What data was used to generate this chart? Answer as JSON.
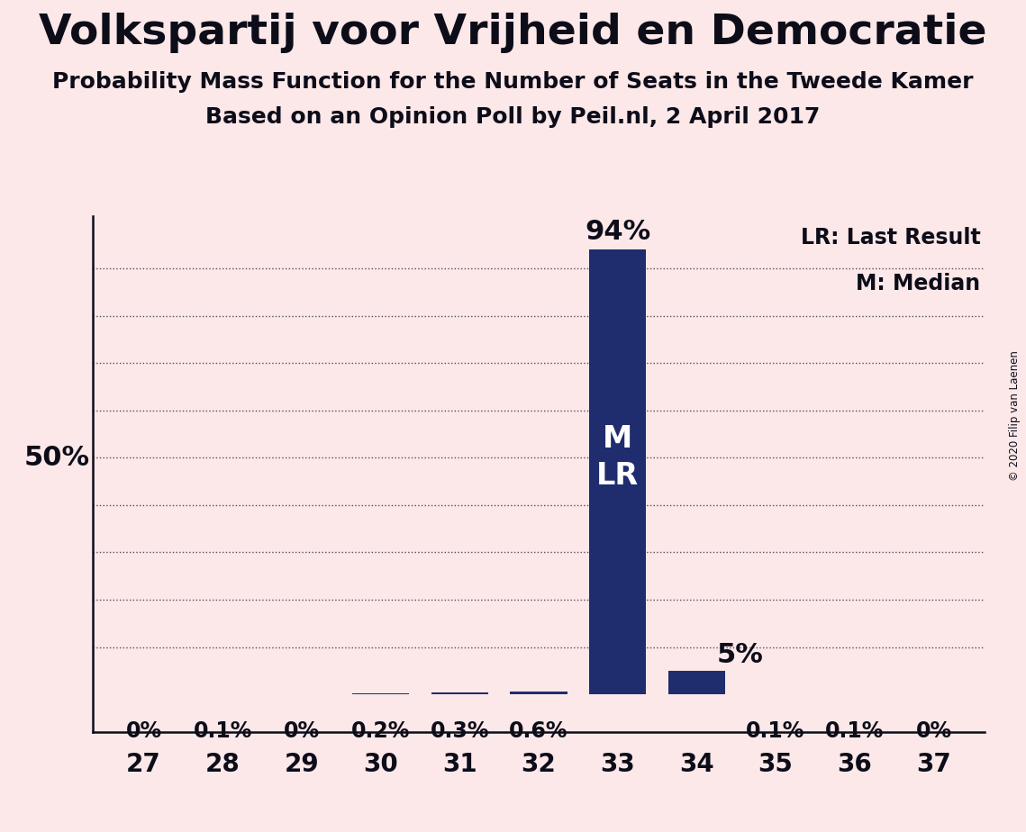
{
  "title": "Volkspartij voor Vrijheid en Democratie",
  "subtitle1": "Probability Mass Function for the Number of Seats in the Tweede Kamer",
  "subtitle2": "Based on an Opinion Poll by Peil.nl, 2 April 2017",
  "copyright": "© 2020 Filip van Laenen",
  "categories": [
    27,
    28,
    29,
    30,
    31,
    32,
    33,
    34,
    35,
    36,
    37
  ],
  "values": [
    0.0,
    0.001,
    0.0,
    0.002,
    0.003,
    0.006,
    0.94,
    0.05,
    0.001,
    0.001,
    0.0
  ],
  "bar_labels": [
    "0%",
    "0.1%",
    "0%",
    "0.2%",
    "0.3%",
    "0.6%",
    "94%",
    "5%",
    "0.1%",
    "0.1%",
    "0%"
  ],
  "bar_color": "#1f2d6e",
  "background_color": "#fce8e8",
  "text_color": "#0d0d1a",
  "median_bar_idx": 6,
  "legend_lr": "LR: Last Result",
  "legend_m": "M: Median",
  "y_label_50": "50%",
  "title_fontsize": 34,
  "subtitle_fontsize": 18,
  "tick_fontsize": 20,
  "bar_label_fontsize": 17,
  "big_label_fontsize": 22,
  "ml_fontsize": 24,
  "grid_yticks": [
    0.1,
    0.2,
    0.3,
    0.4,
    0.5,
    0.6,
    0.7,
    0.8,
    0.9
  ]
}
